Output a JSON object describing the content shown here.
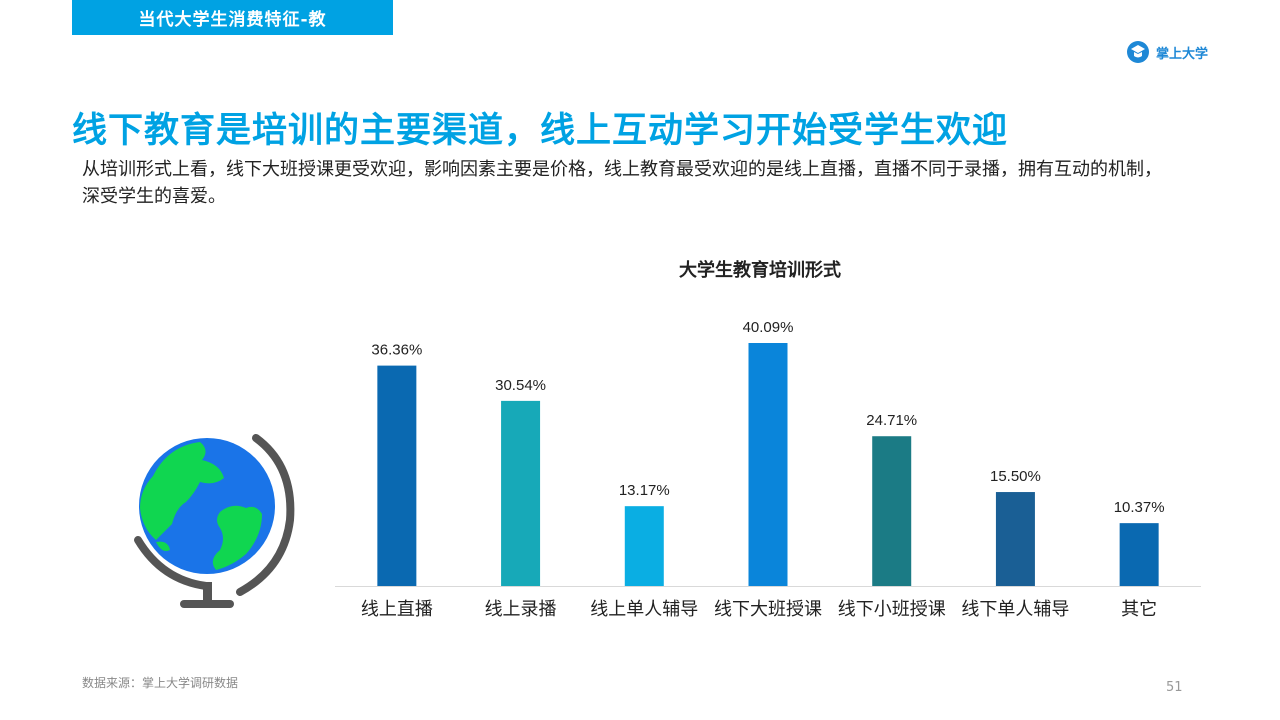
{
  "header": {
    "section_tab": "当代大学生消费特征-教",
    "brand_name": "掌上大学"
  },
  "title": "线下教育是培训的主要渠道，线上互动学习开始受学生欢迎",
  "subtitle": "从培训形式上看，线下大班授课更受欢迎，影响因素主要是价格，线上教育最受欢迎的是线上直播，直播不同于录播，拥有互动的机制，深受学生的喜爱。",
  "chart_data": {
    "type": "bar",
    "title": "大学生教育培训形式",
    "categories": [
      "线上直播",
      "线上录播",
      "线上单人辅导",
      "线下大班授课",
      "线下小班授课",
      "线下单人辅导",
      "其它"
    ],
    "values": [
      36.36,
      30.54,
      13.17,
      40.09,
      24.71,
      15.5,
      10.37
    ],
    "value_labels": [
      "36.36%",
      "30.54%",
      "13.17%",
      "40.09%",
      "24.71%",
      "15.50%",
      "10.37%"
    ],
    "colors": [
      "#0a69b1",
      "#17a9b8",
      "#0aaee3",
      "#0a85da",
      "#1b7b85",
      "#1a5f95",
      "#0a69b1"
    ],
    "ylim": [
      0,
      40.09
    ],
    "xlabel": "",
    "ylabel": "",
    "grid": false,
    "legend": "none"
  },
  "footer": {
    "source": "数据来源：掌上大学调研数据",
    "page_number": "51"
  },
  "colors": {
    "accent": "#00a2e3",
    "brand": "#1e88d6"
  },
  "icons": {
    "globe": "globe-icon",
    "brand_logo": "brand-logo-icon"
  }
}
